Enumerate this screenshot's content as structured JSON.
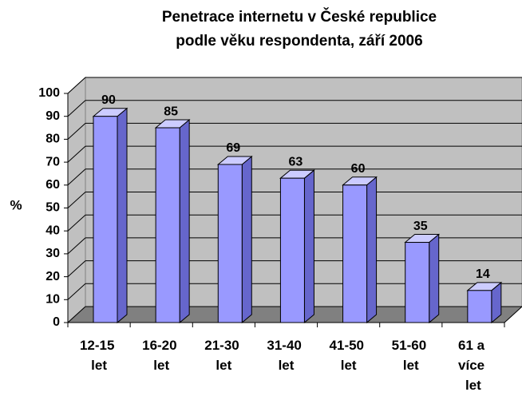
{
  "chart_data": {
    "type": "bar",
    "title": [
      "Penetrace internetu v České republice",
      "podle věku respondenta, září 2006"
    ],
    "y_label": "%",
    "categories": [
      "12-15 let",
      "16-20 let",
      "21-30 let",
      "31-40 let",
      "41-50 let",
      "51-60 let",
      "61 a více let"
    ],
    "values": [
      90,
      85,
      69,
      63,
      60,
      35,
      14
    ],
    "color": "#9999ff",
    "ylim": [
      0,
      100
    ],
    "yticks": [
      0,
      10,
      20,
      30,
      40,
      50,
      60,
      70,
      80,
      90,
      100
    ],
    "grid": true
  }
}
